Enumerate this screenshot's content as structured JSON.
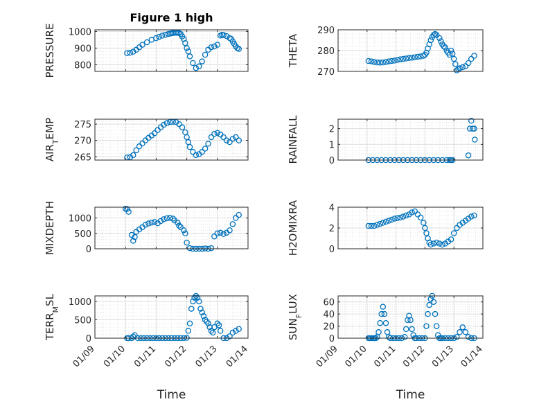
{
  "figure": {
    "title": "Figure 1 high"
  },
  "chart_data": [
    {
      "type": "scatter",
      "title": "Figure 1 high",
      "ylabel": "PRESSURE",
      "xlabel": "",
      "ylim": [
        760,
        1010
      ],
      "yticks": [
        800,
        900,
        1000
      ],
      "xlim": [
        "01/09",
        "01/14"
      ],
      "color": "#0072BD",
      "x": [
        1.05,
        1.15,
        1.25,
        1.35,
        1.45,
        1.55,
        1.7,
        1.85,
        2.0,
        2.1,
        2.2,
        2.3,
        2.4,
        2.45,
        2.5,
        2.55,
        2.6,
        2.65,
        2.7,
        2.75,
        2.8,
        2.85,
        2.9,
        2.95,
        3.0,
        3.05,
        3.1,
        3.2,
        3.3,
        3.4,
        3.5,
        3.6,
        3.7,
        3.8,
        3.9,
        4.0,
        4.1,
        4.15,
        4.2,
        4.3,
        4.4,
        4.45,
        4.5,
        4.55,
        4.6,
        4.65,
        4.7
      ],
      "y": [
        870,
        872,
        878,
        890,
        905,
        920,
        935,
        950,
        960,
        968,
        975,
        980,
        985,
        987,
        989,
        991,
        992,
        993,
        992,
        991,
        985,
        970,
        955,
        930,
        900,
        880,
        850,
        810,
        780,
        790,
        820,
        860,
        890,
        905,
        910,
        920,
        975,
        980,
        978,
        972,
        960,
        955,
        940,
        925,
        910,
        900,
        895
      ]
    },
    {
      "type": "scatter",
      "ylabel": "THETA",
      "xlabel": "",
      "ylim": [
        270,
        290
      ],
      "yticks": [
        270,
        280,
        290
      ],
      "xlim": [
        "01/09",
        "01/14"
      ],
      "color": "#0072BD",
      "x": [
        1.05,
        1.15,
        1.25,
        1.35,
        1.45,
        1.55,
        1.65,
        1.75,
        1.85,
        1.95,
        2.05,
        2.15,
        2.25,
        2.35,
        2.45,
        2.55,
        2.65,
        2.75,
        2.85,
        2.95,
        3.0,
        3.05,
        3.1,
        3.15,
        3.2,
        3.25,
        3.3,
        3.35,
        3.4,
        3.5,
        3.55,
        3.6,
        3.65,
        3.7,
        3.75,
        3.8,
        3.85,
        3.9,
        3.95,
        4.0,
        4.05,
        4.1,
        4.15,
        4.2,
        4.3,
        4.4,
        4.5,
        4.6,
        4.7
      ],
      "y": [
        275,
        274.8,
        274.5,
        274.3,
        274.2,
        274.3,
        274.5,
        274.8,
        275,
        275.2,
        275.5,
        275.8,
        276,
        276.2,
        276.4,
        276.6,
        276.8,
        277,
        277.2,
        277.5,
        278,
        279,
        281,
        283,
        285,
        286.5,
        287.5,
        288,
        287.5,
        286,
        284.5,
        283,
        282,
        281.5,
        280,
        279,
        278,
        280,
        278.5,
        276,
        273.5,
        270.5,
        271,
        271.5,
        272,
        272.5,
        274,
        276,
        277.5
      ]
    },
    {
      "type": "scatter",
      "ylabel": "AIR_TEMP",
      "xlabel": "",
      "ylim": [
        264,
        276.5
      ],
      "yticks": [
        265,
        270,
        275
      ],
      "xlim": [
        "01/09",
        "01/14"
      ],
      "color": "#0072BD",
      "x": [
        1.05,
        1.15,
        1.25,
        1.35,
        1.45,
        1.55,
        1.65,
        1.75,
        1.85,
        1.95,
        2.05,
        2.15,
        2.25,
        2.35,
        2.45,
        2.55,
        2.65,
        2.75,
        2.85,
        2.95,
        3.0,
        3.05,
        3.1,
        3.2,
        3.3,
        3.4,
        3.5,
        3.6,
        3.7,
        3.8,
        3.9,
        4.0,
        4.1,
        4.2,
        4.3,
        4.4,
        4.5,
        4.6,
        4.7
      ],
      "y": [
        264.8,
        264.9,
        265.5,
        267,
        268.2,
        269.1,
        270,
        270.8,
        271.5,
        272.2,
        273.2,
        274,
        274.8,
        275.3,
        275.6,
        275.7,
        275.6,
        275,
        274,
        272.5,
        271,
        269.5,
        268,
        266.5,
        265.5,
        265.8,
        266.5,
        267.5,
        269,
        271,
        272,
        272.3,
        271.8,
        271,
        270,
        269.5,
        270.5,
        271,
        270
      ]
    },
    {
      "type": "scatter",
      "ylabel": "RAINFALL",
      "xlabel": "",
      "ylim": [
        0,
        2.6
      ],
      "yticks": [
        0,
        1,
        2
      ],
      "xlim": [
        "01/09",
        "01/14"
      ],
      "color": "#0072BD",
      "x": [
        1.05,
        1.2,
        1.35,
        1.5,
        1.65,
        1.8,
        1.95,
        2.1,
        2.25,
        2.4,
        2.55,
        2.7,
        2.85,
        3.0,
        3.15,
        3.3,
        3.45,
        3.6,
        3.75,
        3.85,
        3.9,
        3.95,
        4.5,
        4.55,
        4.6,
        4.65,
        4.7,
        4.72
      ],
      "y": [
        0,
        0,
        0,
        0,
        0,
        0,
        0,
        0,
        0,
        0,
        0,
        0,
        0,
        0,
        0,
        0,
        0,
        0,
        0,
        0,
        0,
        0,
        0.3,
        2.0,
        2.5,
        2.0,
        2.0,
        1.3
      ]
    },
    {
      "type": "scatter",
      "ylabel": "MIXDEPTH",
      "xlabel": "",
      "ylim": [
        0,
        1350
      ],
      "yticks": [
        0,
        500,
        1000
      ],
      "xlim": [
        "01/09",
        "01/14"
      ],
      "color": "#0072BD",
      "x": [
        1.0,
        1.05,
        1.1,
        1.2,
        1.25,
        1.3,
        1.35,
        1.45,
        1.55,
        1.65,
        1.75,
        1.85,
        1.95,
        2.05,
        2.15,
        2.25,
        2.35,
        2.45,
        2.55,
        2.6,
        2.7,
        2.75,
        2.8,
        2.9,
        2.95,
        3.0,
        3.1,
        3.2,
        3.3,
        3.4,
        3.5,
        3.6,
        3.7,
        3.8,
        3.9,
        4.0,
        4.1,
        4.2,
        4.3,
        4.4,
        4.5,
        4.6,
        4.7
      ],
      "y": [
        1300,
        1290,
        1200,
        450,
        260,
        380,
        550,
        630,
        700,
        780,
        820,
        850,
        870,
        830,
        900,
        960,
        990,
        1000,
        980,
        920,
        850,
        750,
        700,
        600,
        500,
        200,
        20,
        0,
        0,
        0,
        0,
        10,
        0,
        20,
        400,
        500,
        520,
        480,
        520,
        600,
        800,
        1000,
        1100
      ]
    },
    {
      "type": "scatter",
      "ylabel": "H2OMIXRA",
      "xlabel": "",
      "ylim": [
        0,
        4
      ],
      "yticks": [
        0,
        2,
        4
      ],
      "xlim": [
        "01/09",
        "01/14"
      ],
      "color": "#0072BD",
      "x": [
        1.05,
        1.15,
        1.25,
        1.35,
        1.45,
        1.55,
        1.65,
        1.75,
        1.85,
        1.95,
        2.05,
        2.15,
        2.25,
        2.35,
        2.45,
        2.55,
        2.65,
        2.75,
        2.85,
        2.95,
        3.0,
        3.05,
        3.1,
        3.15,
        3.2,
        3.3,
        3.4,
        3.5,
        3.6,
        3.7,
        3.8,
        3.9,
        4.0,
        4.1,
        4.2,
        4.3,
        4.4,
        4.5,
        4.6,
        4.7
      ],
      "y": [
        2.2,
        2.2,
        2.2,
        2.3,
        2.4,
        2.5,
        2.6,
        2.7,
        2.8,
        2.9,
        2.95,
        3.0,
        3.1,
        3.2,
        3.3,
        3.5,
        3.6,
        3.3,
        3.0,
        2.5,
        2.0,
        1.5,
        1.0,
        0.6,
        0.4,
        0.5,
        0.6,
        0.5,
        0.4,
        0.5,
        0.7,
        0.9,
        1.5,
        2.0,
        2.3,
        2.5,
        2.7,
        2.9,
        3.1,
        3.2
      ]
    },
    {
      "type": "scatter",
      "ylabel": "TERR_MSL",
      "xlabel": "Time",
      "ylim": [
        0,
        1150
      ],
      "yticks": [
        0,
        500,
        1000
      ],
      "xlim": [
        "01/09",
        "01/14"
      ],
      "xticks": [
        "01/09",
        "01/10",
        "01/11",
        "01/12",
        "01/13",
        "01/14"
      ],
      "color": "#0072BD",
      "x": [
        1.05,
        1.1,
        1.2,
        1.25,
        1.3,
        1.4,
        1.5,
        1.6,
        1.7,
        1.8,
        1.9,
        2.0,
        2.1,
        2.2,
        2.3,
        2.4,
        2.5,
        2.6,
        2.7,
        2.8,
        2.9,
        3.0,
        3.05,
        3.1,
        3.15,
        3.2,
        3.25,
        3.3,
        3.35,
        3.4,
        3.45,
        3.5,
        3.55,
        3.6,
        3.65,
        3.7,
        3.75,
        3.8,
        3.85,
        3.9,
        4.0,
        4.05,
        4.1,
        4.2,
        4.3,
        4.4,
        4.5,
        4.6,
        4.7
      ],
      "y": [
        0,
        0,
        0,
        40,
        80,
        0,
        0,
        0,
        0,
        0,
        0,
        0,
        0,
        0,
        0,
        0,
        0,
        0,
        0,
        0,
        0,
        10,
        200,
        400,
        800,
        1000,
        1100,
        1150,
        1100,
        1000,
        800,
        700,
        600,
        500,
        450,
        400,
        300,
        200,
        150,
        300,
        400,
        350,
        200,
        0,
        0,
        50,
        150,
        200,
        250
      ]
    },
    {
      "type": "scatter",
      "ylabel": "SUN_FLUX",
      "xlabel": "Time",
      "ylim": [
        0,
        70
      ],
      "yticks": [
        0,
        20,
        40,
        60
      ],
      "xlim": [
        "01/09",
        "01/14"
      ],
      "xticks": [
        "01/09",
        "01/10",
        "01/11",
        "01/12",
        "01/13",
        "01/14"
      ],
      "color": "#0072BD",
      "x": [
        1.05,
        1.1,
        1.15,
        1.2,
        1.25,
        1.3,
        1.35,
        1.4,
        1.45,
        1.5,
        1.55,
        1.6,
        1.65,
        1.7,
        1.75,
        1.8,
        1.9,
        2.0,
        2.1,
        2.2,
        2.3,
        2.35,
        2.4,
        2.45,
        2.5,
        2.55,
        2.6,
        2.65,
        2.7,
        2.8,
        2.9,
        3.0,
        3.05,
        3.1,
        3.15,
        3.2,
        3.25,
        3.3,
        3.35,
        3.4,
        3.45,
        3.5,
        3.55,
        3.6,
        3.7,
        3.8,
        3.9,
        4.0,
        4.1,
        4.2,
        4.3,
        4.4,
        4.5,
        4.6,
        4.7
      ],
      "y": [
        0,
        0,
        0,
        0,
        0,
        0,
        2,
        10,
        25,
        40,
        52,
        40,
        25,
        10,
        2,
        0,
        0,
        0,
        0,
        0,
        2,
        15,
        30,
        37,
        30,
        15,
        5,
        0,
        0,
        0,
        0,
        0,
        20,
        40,
        55,
        65,
        70,
        60,
        40,
        20,
        5,
        0,
        0,
        0,
        0,
        0,
        0,
        0,
        2,
        10,
        18,
        10,
        2,
        0,
        0
      ]
    }
  ]
}
